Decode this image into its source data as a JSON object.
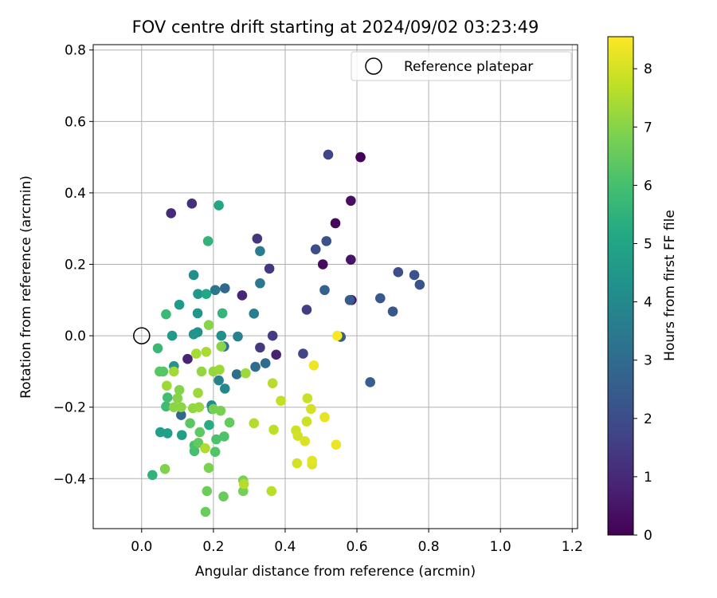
{
  "chart_data": {
    "type": "scatter",
    "title": "FOV centre drift starting at 2024/09/02 03:23:49",
    "xlabel": "Angular distance from reference (arcmin)",
    "ylabel": "Rotation from reference (arcmin)",
    "xlim": [
      -0.135,
      1.215
    ],
    "ylim": [
      -0.54,
      0.815
    ],
    "xticks": [
      0.0,
      0.2,
      0.4,
      0.6,
      0.8,
      1.0,
      1.2
    ],
    "xtick_labels": [
      "0.0",
      "0.2",
      "0.4",
      "0.6",
      "0.8",
      "1.0",
      "1.2"
    ],
    "yticks": [
      -0.4,
      -0.2,
      0.0,
      0.2,
      0.4,
      0.6,
      0.8
    ],
    "ytick_labels": [
      "−0.4",
      "−0.2",
      "0.0",
      "0.2",
      "0.4",
      "0.6",
      "0.8"
    ],
    "grid": true,
    "legend": {
      "position": "top-right",
      "entries": [
        "Reference platepar"
      ]
    },
    "reference_point": {
      "x": 0.0,
      "y": 0.0,
      "label": "Reference platepar"
    },
    "colorbar": {
      "label": "Hours from first FF file",
      "colormap": "viridis",
      "range": [
        0,
        8.55
      ],
      "ticks": [
        0,
        1,
        2,
        3,
        4,
        5,
        6,
        7,
        8
      ],
      "tick_labels": [
        "0",
        "1",
        "2",
        "3",
        "4",
        "5",
        "6",
        "7",
        "8"
      ]
    },
    "points": [
      {
        "x": 0.61,
        "y": 0.5,
        "hours": 0.05
      },
      {
        "x": 0.54,
        "y": 0.315,
        "hours": 0.15
      },
      {
        "x": 0.505,
        "y": 0.2,
        "hours": 0.25
      },
      {
        "x": 0.583,
        "y": 0.378,
        "hours": 0.35
      },
      {
        "x": 0.583,
        "y": 0.213,
        "hours": 0.45
      },
      {
        "x": 0.585,
        "y": 0.1,
        "hours": 0.55
      },
      {
        "x": 0.375,
        "y": -0.053,
        "hours": 0.75
      },
      {
        "x": 0.128,
        "y": -0.065,
        "hours": 0.85
      },
      {
        "x": 0.28,
        "y": 0.113,
        "hours": 0.95
      },
      {
        "x": 0.082,
        "y": 0.343,
        "hours": 1.05
      },
      {
        "x": 0.14,
        "y": 0.37,
        "hours": 1.15
      },
      {
        "x": 0.322,
        "y": 0.272,
        "hours": 1.3
      },
      {
        "x": 0.356,
        "y": 0.188,
        "hours": 1.35
      },
      {
        "x": 0.33,
        "y": -0.033,
        "hours": 1.45
      },
      {
        "x": 0.365,
        "y": 0.0,
        "hours": 1.5
      },
      {
        "x": 0.46,
        "y": 0.073,
        "hours": 1.55
      },
      {
        "x": 0.45,
        "y": -0.05,
        "hours": 1.7
      },
      {
        "x": 0.52,
        "y": 0.507,
        "hours": 1.8
      },
      {
        "x": 0.485,
        "y": 0.242,
        "hours": 2.0
      },
      {
        "x": 0.515,
        "y": 0.265,
        "hours": 2.1
      },
      {
        "x": 0.715,
        "y": 0.178,
        "hours": 2.05
      },
      {
        "x": 0.76,
        "y": 0.17,
        "hours": 2.15
      },
      {
        "x": 0.775,
        "y": 0.143,
        "hours": 2.2
      },
      {
        "x": 0.665,
        "y": 0.105,
        "hours": 2.3
      },
      {
        "x": 0.7,
        "y": 0.068,
        "hours": 2.35
      },
      {
        "x": 0.58,
        "y": 0.1,
        "hours": 2.45
      },
      {
        "x": 0.555,
        "y": -0.003,
        "hours": 2.6
      },
      {
        "x": 0.637,
        "y": -0.13,
        "hours": 2.55
      },
      {
        "x": 0.51,
        "y": 0.128,
        "hours": 2.7
      },
      {
        "x": 0.232,
        "y": 0.133,
        "hours": 2.9
      },
      {
        "x": 0.11,
        "y": -0.222,
        "hours": 2.85
      },
      {
        "x": 0.345,
        "y": -0.077,
        "hours": 2.95
      },
      {
        "x": 0.317,
        "y": -0.087,
        "hours": 3.05
      },
      {
        "x": 0.265,
        "y": -0.108,
        "hours": 3.15
      },
      {
        "x": 0.23,
        "y": -0.03,
        "hours": 3.25
      },
      {
        "x": 0.205,
        "y": 0.128,
        "hours": 3.35
      },
      {
        "x": 0.33,
        "y": 0.147,
        "hours": 3.5
      },
      {
        "x": 0.33,
        "y": 0.237,
        "hours": 3.55
      },
      {
        "x": 0.313,
        "y": 0.062,
        "hours": 3.6
      },
      {
        "x": 0.268,
        "y": -0.002,
        "hours": 3.75
      },
      {
        "x": 0.215,
        "y": -0.125,
        "hours": 3.8
      },
      {
        "x": 0.232,
        "y": -0.148,
        "hours": 3.95
      },
      {
        "x": 0.195,
        "y": -0.195,
        "hours": 4.05
      },
      {
        "x": 0.197,
        "y": -0.205,
        "hours": 4.1
      },
      {
        "x": 0.222,
        "y": 0.0,
        "hours": 4.2
      },
      {
        "x": 0.145,
        "y": 0.17,
        "hours": 4.25
      },
      {
        "x": 0.156,
        "y": 0.01,
        "hours": 4.3
      },
      {
        "x": 0.145,
        "y": 0.004,
        "hours": 4.4
      },
      {
        "x": 0.157,
        "y": 0.117,
        "hours": 4.55
      },
      {
        "x": 0.156,
        "y": 0.063,
        "hours": 4.5
      },
      {
        "x": 0.085,
        "y": 0.0,
        "hours": 4.6
      },
      {
        "x": 0.105,
        "y": 0.087,
        "hours": 4.65
      },
      {
        "x": 0.09,
        "y": -0.085,
        "hours": 4.4
      },
      {
        "x": 0.112,
        "y": -0.278,
        "hours": 4.75
      },
      {
        "x": 0.072,
        "y": -0.273,
        "hours": 4.8
      },
      {
        "x": 0.052,
        "y": -0.27,
        "hours": 4.85
      },
      {
        "x": 0.215,
        "y": 0.365,
        "hours": 5.05
      },
      {
        "x": 0.18,
        "y": 0.117,
        "hours": 5.1
      },
      {
        "x": 0.188,
        "y": -0.25,
        "hours": 5.25
      },
      {
        "x": 0.185,
        "y": 0.265,
        "hours": 5.55
      },
      {
        "x": 0.03,
        "y": -0.39,
        "hours": 5.5
      },
      {
        "x": 0.225,
        "y": 0.063,
        "hours": 5.6
      },
      {
        "x": 0.045,
        "y": -0.035,
        "hours": 5.7
      },
      {
        "x": 0.068,
        "y": 0.06,
        "hours": 5.75
      },
      {
        "x": 0.068,
        "y": -0.198,
        "hours": 5.85
      },
      {
        "x": 0.072,
        "y": -0.173,
        "hours": 5.95
      },
      {
        "x": 0.147,
        "y": -0.323,
        "hours": 6.0
      },
      {
        "x": 0.147,
        "y": -0.307,
        "hours": 6.05
      },
      {
        "x": 0.208,
        "y": -0.29,
        "hours": 6.1
      },
      {
        "x": 0.23,
        "y": -0.282,
        "hours": 6.15
      },
      {
        "x": 0.205,
        "y": -0.325,
        "hours": 6.2
      },
      {
        "x": 0.06,
        "y": -0.1,
        "hours": 6.25
      },
      {
        "x": 0.05,
        "y": -0.1,
        "hours": 6.3
      },
      {
        "x": 0.135,
        "y": -0.245,
        "hours": 6.35
      },
      {
        "x": 0.162,
        "y": -0.27,
        "hours": 6.4
      },
      {
        "x": 0.158,
        "y": -0.3,
        "hours": 6.45
      },
      {
        "x": 0.245,
        "y": -0.243,
        "hours": 6.5
      },
      {
        "x": 0.228,
        "y": -0.45,
        "hours": 6.55
      },
      {
        "x": 0.178,
        "y": -0.493,
        "hours": 6.6
      },
      {
        "x": 0.182,
        "y": -0.435,
        "hours": 6.65
      },
      {
        "x": 0.283,
        "y": -0.435,
        "hours": 6.75
      },
      {
        "x": 0.283,
        "y": -0.405,
        "hours": 6.8
      },
      {
        "x": 0.065,
        "y": -0.373,
        "hours": 6.9
      },
      {
        "x": 0.187,
        "y": -0.37,
        "hours": 6.85
      },
      {
        "x": 0.2,
        "y": -0.205,
        "hours": 6.75
      },
      {
        "x": 0.22,
        "y": -0.21,
        "hours": 6.8
      },
      {
        "x": 0.105,
        "y": -0.152,
        "hours": 6.95
      },
      {
        "x": 0.1,
        "y": -0.175,
        "hours": 7.0
      },
      {
        "x": 0.09,
        "y": -0.2,
        "hours": 7.05
      },
      {
        "x": 0.11,
        "y": -0.2,
        "hours": 7.1
      },
      {
        "x": 0.143,
        "y": -0.203,
        "hours": 7.15
      },
      {
        "x": 0.16,
        "y": -0.2,
        "hours": 7.2
      },
      {
        "x": 0.157,
        "y": -0.16,
        "hours": 7.25
      },
      {
        "x": 0.07,
        "y": -0.14,
        "hours": 7.3
      },
      {
        "x": 0.09,
        "y": -0.1,
        "hours": 7.35
      },
      {
        "x": 0.152,
        "y": -0.05,
        "hours": 7.4
      },
      {
        "x": 0.18,
        "y": -0.045,
        "hours": 7.45
      },
      {
        "x": 0.187,
        "y": 0.03,
        "hours": 7.0
      },
      {
        "x": 0.222,
        "y": -0.03,
        "hours": 7.05
      },
      {
        "x": 0.167,
        "y": -0.1,
        "hours": 7.15
      },
      {
        "x": 0.2,
        "y": -0.1,
        "hours": 7.2
      },
      {
        "x": 0.217,
        "y": -0.095,
        "hours": 7.25
      },
      {
        "x": 0.29,
        "y": -0.105,
        "hours": 7.3
      },
      {
        "x": 0.177,
        "y": -0.315,
        "hours": 7.5
      },
      {
        "x": 0.313,
        "y": -0.245,
        "hours": 7.55
      },
      {
        "x": 0.285,
        "y": -0.415,
        "hours": 7.6
      },
      {
        "x": 0.362,
        "y": -0.435,
        "hours": 7.65
      },
      {
        "x": 0.365,
        "y": -0.133,
        "hours": 7.6
      },
      {
        "x": 0.368,
        "y": -0.263,
        "hours": 7.7
      },
      {
        "x": 0.388,
        "y": -0.182,
        "hours": 7.75
      },
      {
        "x": 0.43,
        "y": -0.265,
        "hours": 7.9
      },
      {
        "x": 0.435,
        "y": -0.28,
        "hours": 7.95
      },
      {
        "x": 0.433,
        "y": -0.357,
        "hours": 8.0
      },
      {
        "x": 0.455,
        "y": -0.295,
        "hours": 8.05
      },
      {
        "x": 0.462,
        "y": -0.175,
        "hours": 7.85
      },
      {
        "x": 0.46,
        "y": -0.24,
        "hours": 7.9
      },
      {
        "x": 0.472,
        "y": -0.205,
        "hours": 8.0
      },
      {
        "x": 0.475,
        "y": -0.36,
        "hours": 8.1
      },
      {
        "x": 0.475,
        "y": -0.35,
        "hours": 8.2
      },
      {
        "x": 0.51,
        "y": -0.228,
        "hours": 8.25
      },
      {
        "x": 0.542,
        "y": -0.305,
        "hours": 8.3
      },
      {
        "x": 0.48,
        "y": -0.083,
        "hours": 8.35
      },
      {
        "x": 0.545,
        "y": 0.0,
        "hours": 8.5
      }
    ]
  }
}
